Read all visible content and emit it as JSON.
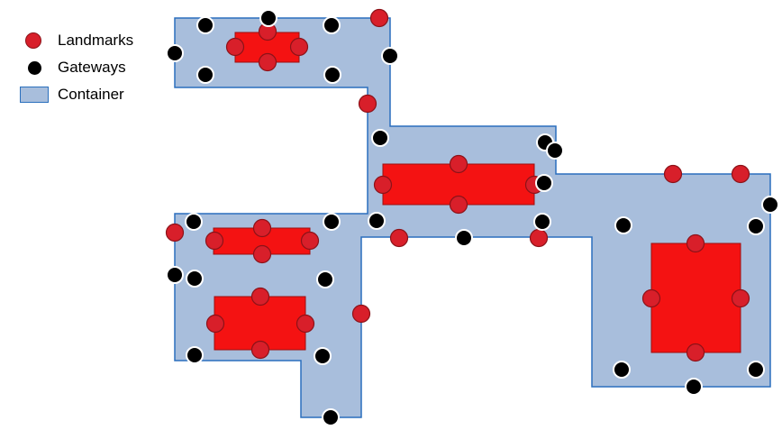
{
  "legend": {
    "landmarks_label": "Landmarks",
    "gateways_label": "Gateways",
    "container_label": "Container"
  },
  "colors": {
    "container_fill": "#a8bedc",
    "container_stroke": "#2a6fbd",
    "landmark_fill": "#d81f2a",
    "landmark_stroke": "#8c1218",
    "room_fill": "#f41212",
    "room_stroke": "#9b1010",
    "gateway_fill": "#000000",
    "gateway_stroke": "#ffffff"
  }
}
